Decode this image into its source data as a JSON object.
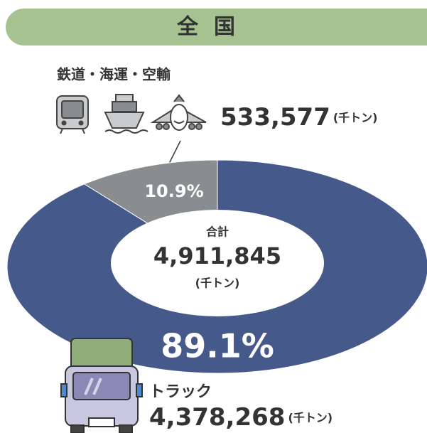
{
  "chart_data": {
    "type": "pie",
    "title": "全国",
    "categories": [
      "トラック",
      "鉄道・海運・空輸"
    ],
    "values": [
      89.1,
      10.9
    ],
    "value_labels": [
      "89.1%",
      "10.9%"
    ],
    "colors": [
      "#45598a",
      "#8a8d90"
    ],
    "amount_labels": [
      "4,378,268",
      "533,577"
    ],
    "unit": "(千トン)",
    "total_name": "合計",
    "total_label": "4,911,845"
  }
}
